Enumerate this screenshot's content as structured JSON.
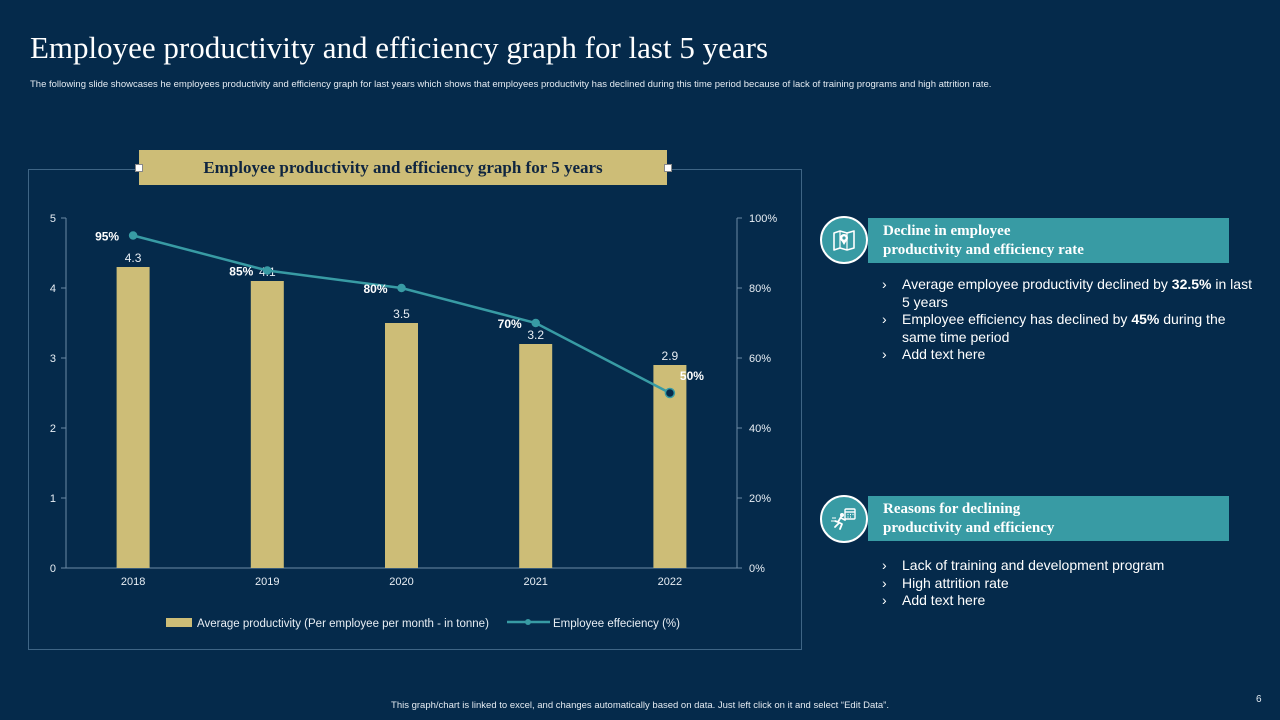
{
  "title": "Employee productivity and efficiency graph for last 5 years",
  "subtitle": "The following slide showcases he employees productivity and efficiency graph for last years which shows that employees productivity has declined during this time period because of lack of training programs and high attrition rate.",
  "chart_data": {
    "type": "bar",
    "title": "Employee productivity and efficiency graph for 5 years",
    "categories": [
      "2018",
      "2019",
      "2020",
      "2021",
      "2022"
    ],
    "series": [
      {
        "name": "Average productivity (Per employee per month - in tonne)",
        "type": "bar",
        "axis": "left",
        "values": [
          4.3,
          4.1,
          3.5,
          3.2,
          2.9
        ],
        "labels": [
          "4.3",
          "4.1",
          "3.5",
          "3.2",
          "2.9"
        ]
      },
      {
        "name": "Employee effeciency (%)",
        "type": "line",
        "axis": "right",
        "values": [
          95,
          85,
          80,
          70,
          50
        ],
        "labels": [
          "95%",
          "85%",
          "80%",
          "70%",
          "50%"
        ]
      }
    ],
    "y_left": {
      "range": [
        0,
        5
      ],
      "ticks": [
        "0",
        "1",
        "2",
        "3",
        "4",
        "5"
      ]
    },
    "y_right": {
      "range": [
        0,
        100
      ],
      "ticks": [
        "0%",
        "20%",
        "40%",
        "60%",
        "80%",
        "100%"
      ]
    },
    "legend": "bottom",
    "grid": false,
    "colors": {
      "bar": "#cdbd77",
      "line": "#389ba4"
    }
  },
  "panels": [
    {
      "title_line1": "Decline in employee",
      "title_line2": "productivity and efficiency rate",
      "icon": "map-pin-icon",
      "bullets": [
        {
          "pre": "Average employee productivity declined by ",
          "bold": "32.5%",
          "post": " in last 5 years"
        },
        {
          "pre": "Employee  efficiency has declined by ",
          "bold": "45%",
          "post": " during the same time period"
        },
        {
          "pre": "Add text here",
          "bold": "",
          "post": ""
        }
      ]
    },
    {
      "title_line1": "Reasons for declining",
      "title_line2": "productivity and efficiency",
      "icon": "running-calendar-icon",
      "bullets": [
        {
          "pre": "Lack of training and development program",
          "bold": "",
          "post": ""
        },
        {
          "pre": "High attrition rate",
          "bold": "",
          "post": ""
        },
        {
          "pre": "Add text here",
          "bold": "",
          "post": ""
        }
      ]
    }
  ],
  "bullet_marker": "›",
  "footer": "This graph/chart is linked to excel, and changes automatically based on data. Just left click on it and select “Edit Data”.",
  "page_number": "6",
  "theme": {
    "background": "#052a4b",
    "accent": "#389ba4",
    "gold": "#cdbd77"
  }
}
